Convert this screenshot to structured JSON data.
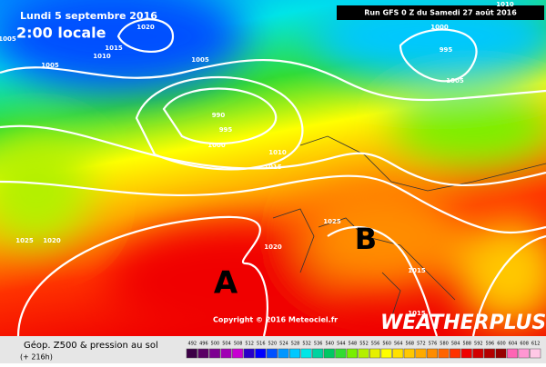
{
  "header": {
    "valid_date": "Lundi 5 septembre 2016",
    "local_time": "2:00 locale",
    "run": "Run GFS 0 Z du Samedi 27 août 2016"
  },
  "isobar_labels": [
    "1020",
    "1005",
    "1015",
    "1010",
    "1005",
    "1005",
    "990",
    "995",
    "1000",
    "1010",
    "1015",
    "1025",
    "1020",
    "1020",
    "1025",
    "1015",
    "1015",
    "1000",
    "995",
    "1005",
    "1010"
  ],
  "high_label": "A",
  "low_label": "B",
  "copyright": "Copyright © 2016 Meteociel.fr",
  "brand": "WEATHERPLUS",
  "footer": {
    "title": "Géop. Z500 & pression au sol",
    "lead": "(+ 216h)"
  },
  "scale": {
    "labels": [
      492,
      496,
      500,
      504,
      508,
      512,
      516,
      520,
      524,
      528,
      532,
      536,
      540,
      544,
      548,
      552,
      556,
      560,
      564,
      568,
      572,
      576,
      580,
      584,
      588,
      592,
      596,
      600,
      604,
      608,
      612
    ],
    "colors": [
      "#3c0046",
      "#5a0064",
      "#7d0091",
      "#a000b4",
      "#c800d2",
      "#2800c8",
      "#0000ff",
      "#0050ff",
      "#0096ff",
      "#00c8ff",
      "#00e6e6",
      "#00d2a0",
      "#00c864",
      "#32dc32",
      "#78f000",
      "#b4f000",
      "#e6f000",
      "#ffff00",
      "#ffe100",
      "#ffc800",
      "#ffaa00",
      "#ff8c00",
      "#ff6400",
      "#ff3200",
      "#f00000",
      "#d20000",
      "#b40000",
      "#960000",
      "#ff64b4",
      "#ff96d2",
      "#ffc8e6"
    ]
  }
}
